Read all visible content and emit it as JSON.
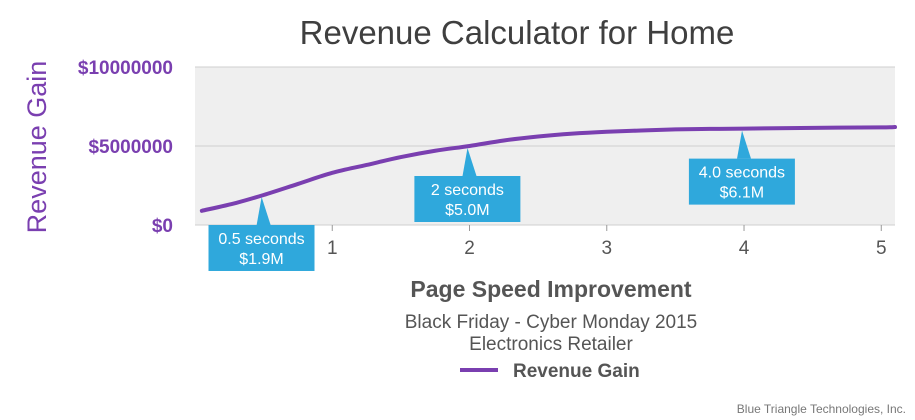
{
  "chart_data": {
    "type": "line",
    "title": "Revenue Calculator for Home",
    "ylabel": "Revenue Gain",
    "xlabel": "Page Speed Improvement",
    "subtitle_lines": [
      "Black Friday - Cyber Monday 2015",
      "Electronics Retailer"
    ],
    "xlim": [
      0,
      5.1
    ],
    "ylim": [
      0,
      10000000
    ],
    "xticks": [
      1,
      2,
      3,
      4,
      5
    ],
    "xtick_labels": [
      "1",
      "2",
      "3",
      "4",
      "5"
    ],
    "yticks": [
      0,
      5000000,
      10000000
    ],
    "ytick_labels": [
      "$0",
      "$5000000",
      "$10000000"
    ],
    "grid": true,
    "legend_position": "bottom-center",
    "series": [
      {
        "name": "Revenue Gain",
        "color": "#7a3fb0",
        "x": [
          0.05,
          0.3,
          0.5,
          0.75,
          1.0,
          1.25,
          1.5,
          1.75,
          2.0,
          2.25,
          2.5,
          2.75,
          3.0,
          3.25,
          3.5,
          3.75,
          4.0,
          4.5,
          5.0,
          5.1
        ],
        "y": [
          900000,
          1400000,
          1900000,
          2600000,
          3300000,
          3800000,
          4300000,
          4700000,
          5000000,
          5350000,
          5600000,
          5780000,
          5900000,
          5980000,
          6050000,
          6080000,
          6100000,
          6150000,
          6180000,
          6200000
        ]
      }
    ],
    "annotations": [
      {
        "x": 0.5,
        "y": 1900000,
        "line1": "0.5 seconds",
        "line2": "$1.9M"
      },
      {
        "x": 2.0,
        "y": 5000000,
        "line1": "2 seconds",
        "line2": "$5.0M"
      },
      {
        "x": 4.0,
        "y": 6100000,
        "line1": "4.0 seconds",
        "line2": "$6.1M"
      }
    ],
    "annotation_color": "#2fa8dc",
    "plot_background": "#efefef",
    "grid_color": "#cfcfcf"
  },
  "credit": "Blue Triangle Technologies, Inc."
}
